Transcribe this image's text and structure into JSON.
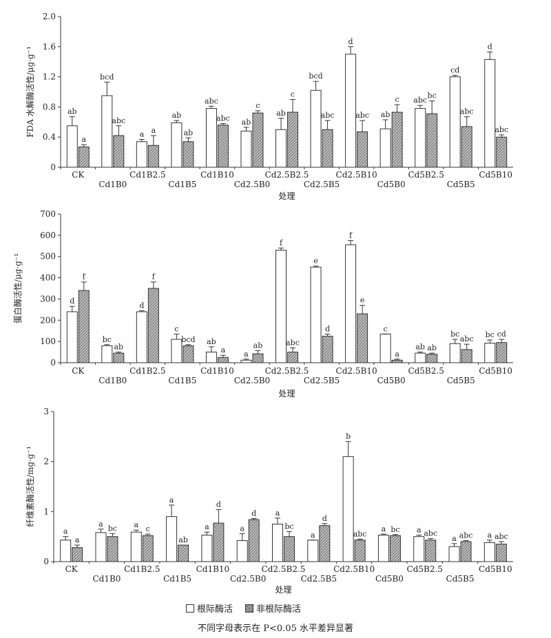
{
  "legend": {
    "root": "根际酶活",
    "nonroot": "非根际酶活"
  },
  "note": "不同字母表示在 P<0.05 水平差异显著",
  "chart_data": [
    {
      "type": "bar",
      "ylabel": "FDA 水解酶活性/μg·g⁻¹",
      "xlabel": "处理",
      "ylim": [
        0,
        2.0
      ],
      "yticks": [
        "0",
        "0.4",
        "0.8",
        "1.2",
        "1.6",
        "2.0"
      ],
      "categories": [
        "CK",
        "Cd1B0",
        "Cd1B2.5",
        "Cd1B5",
        "Cd1B10",
        "Cd2.5B0",
        "Cd2.5B2.5",
        "Cd2.5B5",
        "Cd2.5B10",
        "Cd5B0",
        "Cd5B2.5",
        "Cd5B5",
        "Cd5B10"
      ],
      "series": [
        {
          "name": "根际酶活",
          "values": [
            0.55,
            0.95,
            0.34,
            0.59,
            0.78,
            0.48,
            0.5,
            1.02,
            1.5,
            0.51,
            0.78,
            1.2,
            1.43
          ],
          "errors": [
            0.12,
            0.18,
            0.03,
            0.03,
            0.03,
            0.05,
            0.15,
            0.12,
            0.1,
            0.12,
            0.04,
            0.02,
            0.1
          ],
          "labels": [
            "ab",
            "bcd",
            "a",
            "ab",
            "abc",
            "ab",
            "ab",
            "bcd",
            "d",
            "ab",
            "abc",
            "cd",
            "d"
          ]
        },
        {
          "name": "非根际酶活",
          "values": [
            0.27,
            0.42,
            0.29,
            0.34,
            0.56,
            0.72,
            0.73,
            0.5,
            0.47,
            0.73,
            0.71,
            0.54,
            0.4
          ],
          "errors": [
            0.03,
            0.13,
            0.13,
            0.05,
            0.02,
            0.03,
            0.17,
            0.12,
            0.15,
            0.1,
            0.17,
            0.13,
            0.03
          ],
          "labels": [
            "a",
            "abc",
            "a",
            "ab",
            "abc",
            "c",
            "c",
            "abc",
            "abc",
            "c",
            "bc",
            "abc",
            "abc"
          ]
        }
      ]
    },
    {
      "type": "bar",
      "ylabel": "蛋白酶活性/μg·g⁻¹",
      "xlabel": "处理",
      "ylim": [
        0,
        700
      ],
      "yticks": [
        "0",
        "100",
        "200",
        "300",
        "400",
        "500",
        "600",
        "700"
      ],
      "categories": [
        "CK",
        "Cd1B0",
        "Cd1B2.5",
        "Cd1B5",
        "Cd1B10",
        "Cd2.5B0",
        "Cd2.5B2.5",
        "Cd2.5B5",
        "Cd2.5B10",
        "Cd5B0",
        "Cd5B2.5",
        "Cd5B5",
        "Cd5B10"
      ],
      "series": [
        {
          "name": "根际酶活",
          "values": [
            240,
            80,
            240,
            110,
            50,
            12,
            530,
            450,
            555,
            135,
            45,
            90,
            92
          ],
          "errors": [
            25,
            5,
            5,
            25,
            25,
            5,
            10,
            5,
            20,
            0,
            5,
            20,
            15
          ],
          "labels": [
            "d",
            "bc",
            "d",
            "c",
            "ab",
            "a",
            "f",
            "e",
            "f",
            "c",
            "ab",
            "bc",
            "bc"
          ]
        },
        {
          "name": "非根际酶活",
          "values": [
            340,
            45,
            350,
            80,
            25,
            42,
            50,
            125,
            230,
            12,
            40,
            62,
            95
          ],
          "errors": [
            40,
            5,
            30,
            5,
            10,
            15,
            20,
            10,
            40,
            5,
            5,
            25,
            15
          ],
          "labels": [
            "f",
            "ab",
            "f",
            "bcd",
            "a",
            "ab",
            "abc",
            "d",
            "e",
            "a",
            "ab",
            "abc",
            "cd"
          ]
        }
      ]
    },
    {
      "type": "bar",
      "ylabel": "纤维素酶活性/mg·g⁻¹",
      "xlabel": "处理",
      "ylim": [
        0,
        3
      ],
      "yticks": [
        "0",
        "1",
        "2",
        "3"
      ],
      "categories": [
        "CK",
        "Cd1B0",
        "Cd1B2.5",
        "Cd1B5",
        "Cd1B10",
        "Cd2.5B0",
        "Cd2.5B2.5",
        "Cd2.5B5",
        "Cd2.5B10",
        "Cd5B0",
        "Cd5B2.5",
        "Cd5B5",
        "Cd5B10"
      ],
      "series": [
        {
          "name": "根际酶活",
          "values": [
            0.43,
            0.58,
            0.59,
            0.9,
            0.53,
            0.42,
            0.75,
            0.43,
            2.1,
            0.53,
            0.5,
            0.3,
            0.38
          ],
          "errors": [
            0.07,
            0.07,
            0.04,
            0.23,
            0.06,
            0.14,
            0.12,
            0.0,
            0.3,
            0.02,
            0.03,
            0.06,
            0.05
          ],
          "labels": [
            "a",
            "a",
            "a",
            "a",
            "a",
            "a",
            "a",
            "a",
            "b",
            "a",
            "a",
            "a",
            "a"
          ]
        },
        {
          "name": "非根际酶活",
          "values": [
            0.28,
            0.5,
            0.52,
            0.33,
            0.77,
            0.84,
            0.5,
            0.72,
            0.43,
            0.52,
            0.43,
            0.4,
            0.35
          ],
          "errors": [
            0.05,
            0.06,
            0.03,
            0.0,
            0.27,
            0.02,
            0.1,
            0.04,
            0.02,
            0.02,
            0.03,
            0.02,
            0.05
          ],
          "labels": [
            "a",
            "bc",
            "c",
            "ab",
            "d",
            "d",
            "bc",
            "d",
            "abc",
            "bc",
            "abc",
            "abc",
            "abc"
          ]
        }
      ]
    }
  ]
}
